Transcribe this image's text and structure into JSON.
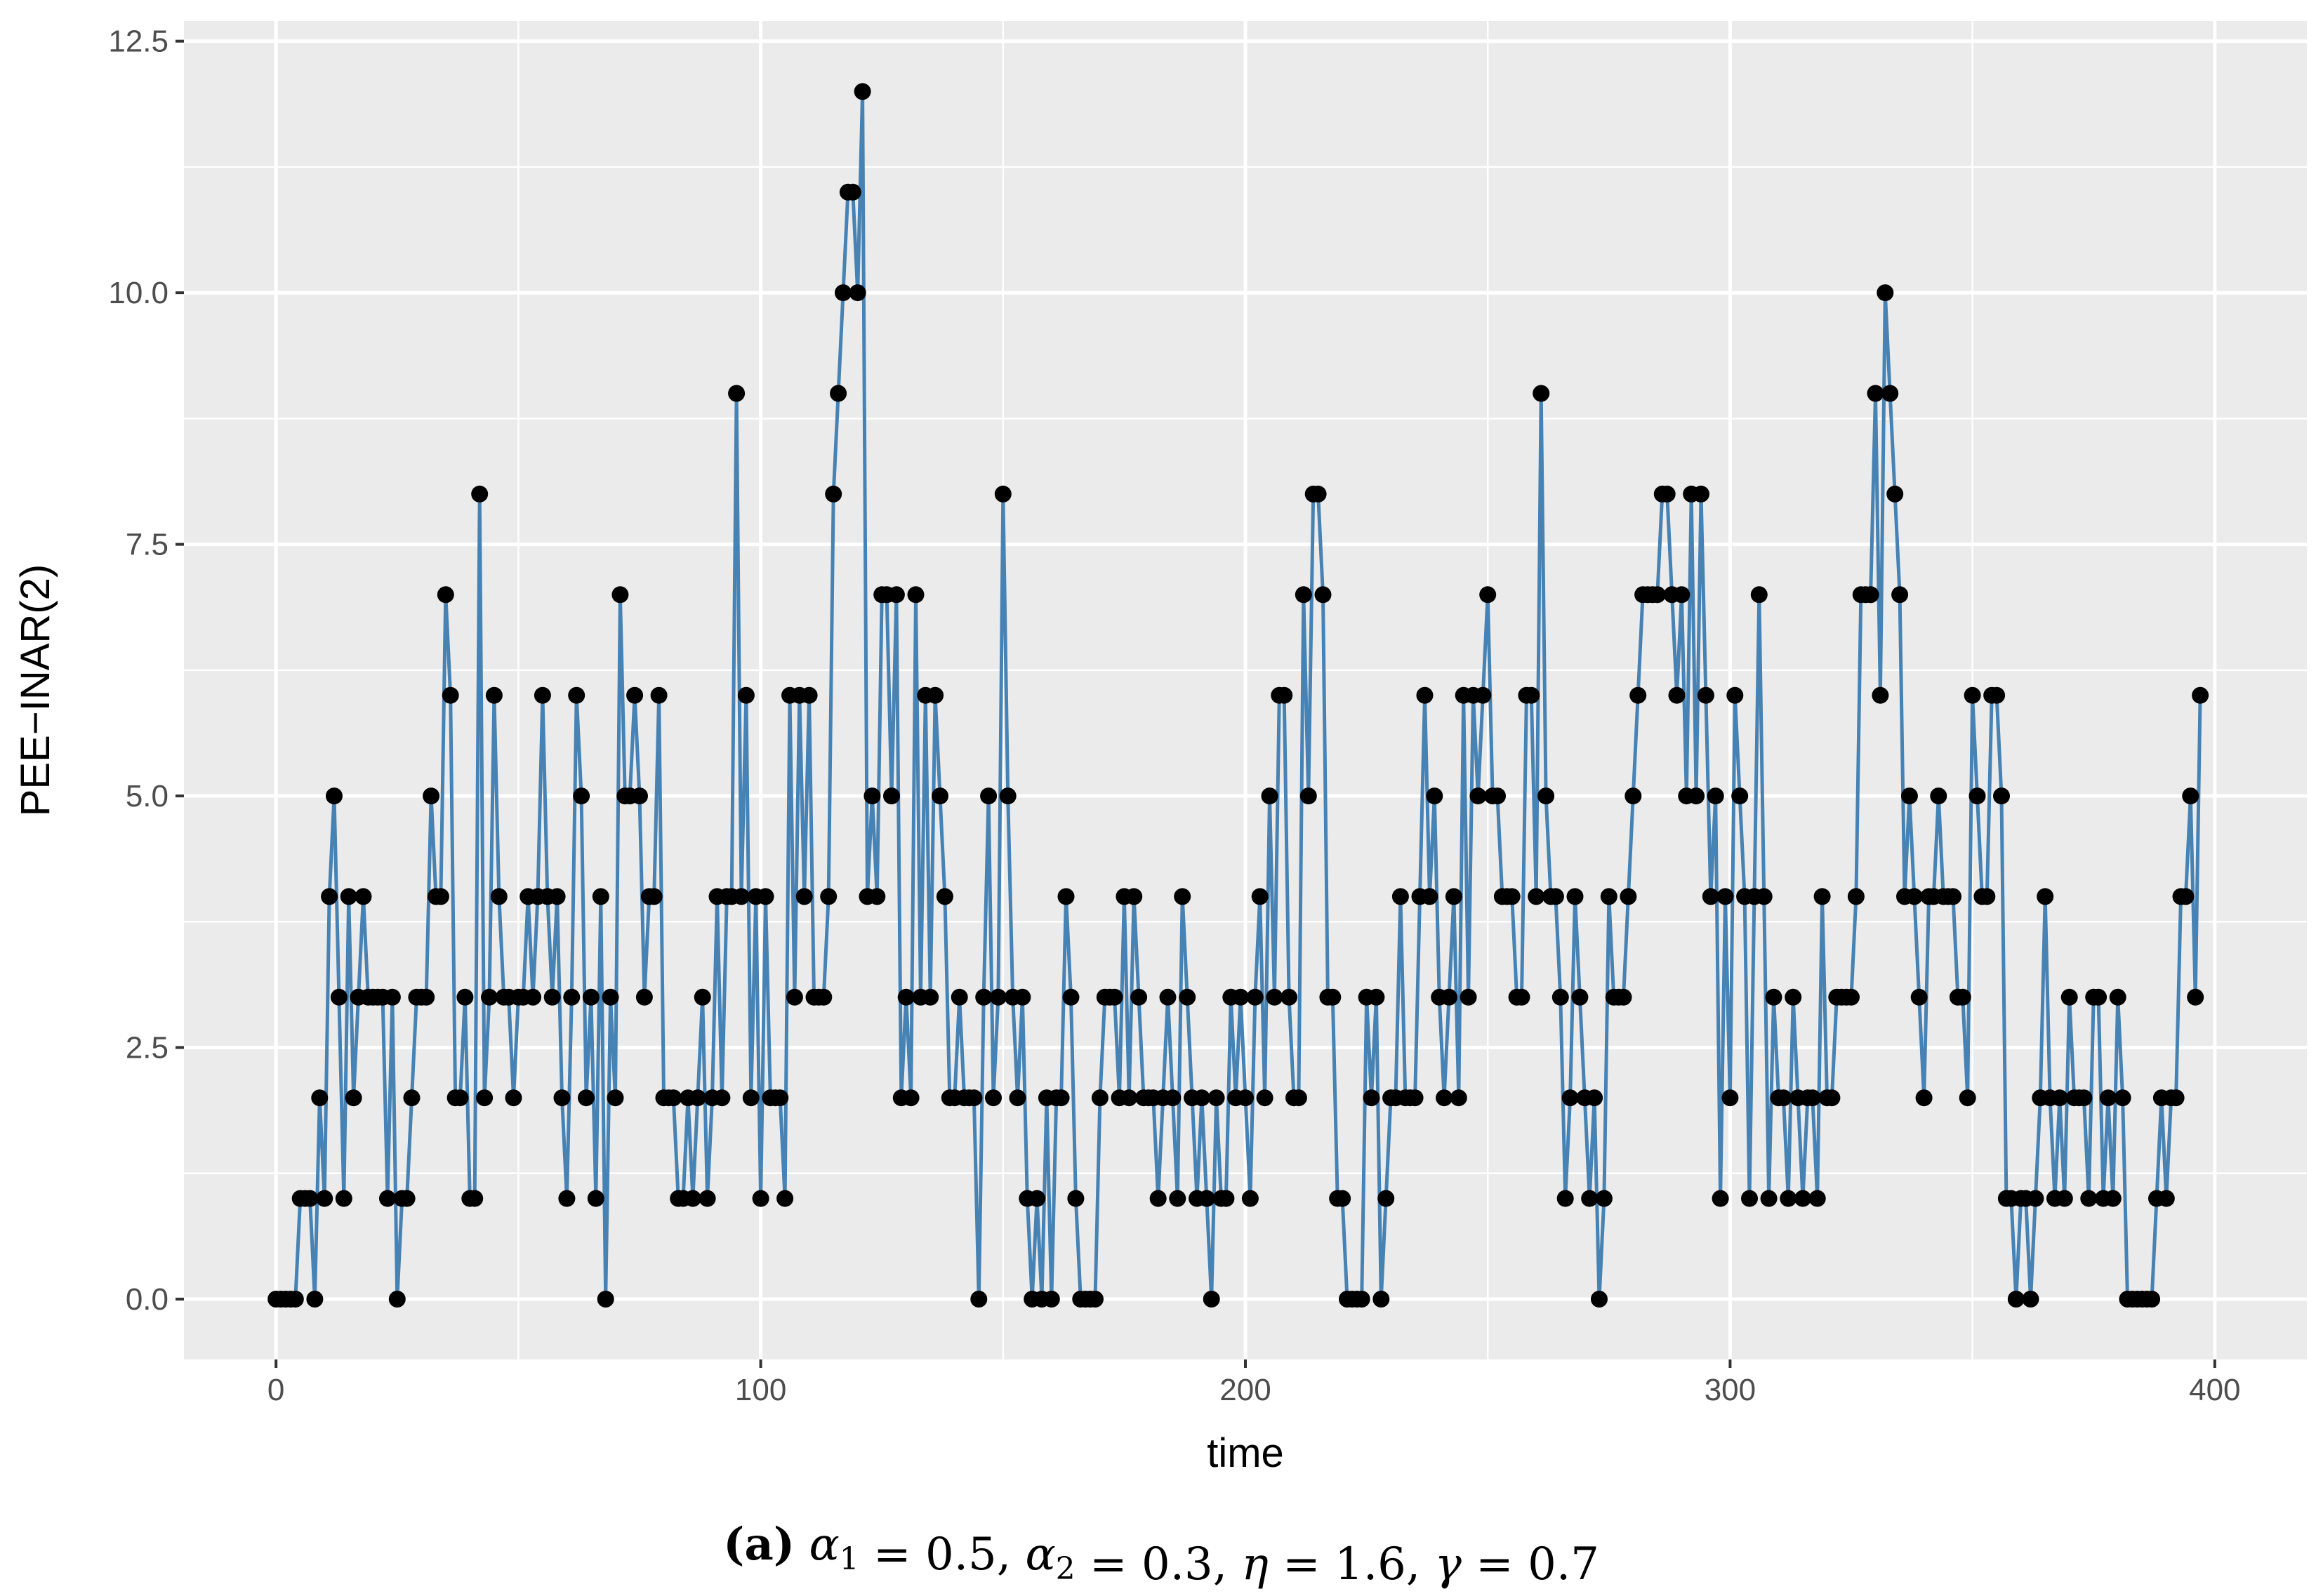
{
  "chart_data": {
    "type": "line",
    "xlabel": "time",
    "ylabel": "PEE−INAR(2)",
    "xlim": [
      -19,
      419
    ],
    "ylim": [
      -0.6,
      12.7
    ],
    "x_ticks": [
      0,
      100,
      200,
      300,
      400
    ],
    "x_tick_labels": [
      "0",
      "100",
      "200",
      "300",
      "400"
    ],
    "y_ticks": [
      0,
      2.5,
      5,
      7.5,
      10,
      12.5
    ],
    "y_tick_labels": [
      "0.0",
      "2.5",
      "5.0",
      "7.5",
      "10.0",
      "12.5"
    ],
    "grid": true,
    "line_color": "#4682b4",
    "point_color": "#000000",
    "panel_color": "#ebebeb",
    "x_start": 0,
    "series": [
      {
        "values": [
          0,
          0,
          0,
          0,
          0,
          1,
          1,
          1,
          0,
          2,
          1,
          4,
          5,
          3,
          1,
          4,
          2,
          3,
          4,
          3,
          3,
          3,
          3,
          1,
          3,
          0,
          1,
          1,
          2,
          3,
          3,
          3,
          5,
          4,
          4,
          7,
          6,
          2,
          2,
          3,
          1,
          1,
          8,
          2,
          3,
          6,
          4,
          3,
          3,
          2,
          3,
          3,
          4,
          3,
          4,
          6,
          4,
          3,
          4,
          2,
          1,
          3,
          6,
          5,
          2,
          3,
          1,
          4,
          0,
          3,
          2,
          7,
          5,
          5,
          6,
          5,
          3,
          4,
          4,
          6,
          2,
          2,
          2,
          1,
          1,
          2,
          1,
          2,
          3,
          1,
          2,
          4,
          2,
          4,
          4,
          9,
          4,
          6,
          2,
          4,
          1,
          4,
          2,
          2,
          2,
          1,
          6,
          3,
          6,
          4,
          6,
          3,
          3,
          3,
          4,
          8,
          9,
          10,
          11,
          11,
          10,
          12,
          4,
          5,
          4,
          7,
          7,
          5,
          7,
          2,
          3,
          2,
          7,
          3,
          6,
          3,
          6,
          5,
          4,
          2,
          2,
          3,
          2,
          2,
          2,
          0,
          3,
          5,
          2,
          3,
          8,
          5,
          3,
          2,
          3,
          1,
          0,
          1,
          0,
          2,
          0,
          2,
          2,
          4,
          3,
          1,
          0,
          0,
          0,
          0,
          2,
          3,
          3,
          3,
          2,
          4,
          2,
          4,
          3,
          2,
          2,
          2,
          1,
          2,
          3,
          2,
          1,
          4,
          3,
          2,
          1,
          2,
          1,
          0,
          2,
          1,
          1,
          3,
          2,
          3,
          2,
          1,
          3,
          4,
          2,
          5,
          3,
          6,
          6,
          3,
          2,
          2,
          7,
          5,
          8,
          8,
          7,
          3,
          3,
          1,
          1,
          0,
          0,
          0,
          0,
          3,
          2,
          3,
          0,
          1,
          2,
          2,
          4,
          2,
          2,
          2,
          4,
          6,
          4,
          5,
          3,
          2,
          3,
          4,
          2,
          6,
          3,
          6,
          5,
          6,
          7,
          5,
          5,
          4,
          4,
          4,
          3,
          3,
          6,
          6,
          4,
          9,
          5,
          4,
          4,
          3,
          1,
          2,
          4,
          3,
          2,
          1,
          2,
          0,
          1,
          4,
          3,
          3,
          3,
          4,
          5,
          6,
          7,
          7,
          7,
          7,
          8,
          8,
          7,
          6,
          7,
          5,
          8,
          5,
          8,
          6,
          4,
          5,
          1,
          4,
          2,
          6,
          5,
          4,
          1,
          4,
          7,
          4,
          1,
          3,
          2,
          2,
          1,
          3,
          2,
          1,
          2,
          2,
          1,
          4,
          2,
          2,
          3,
          3,
          3,
          3,
          4,
          7,
          7,
          7,
          9,
          6,
          10,
          9,
          8,
          7,
          4,
          5,
          4,
          3,
          2,
          4,
          4,
          5,
          4,
          4,
          4,
          3,
          3,
          2,
          6,
          5,
          4,
          4,
          6,
          6,
          5,
          1,
          1,
          0,
          1,
          1,
          0,
          1,
          2,
          4,
          2,
          1,
          2,
          1,
          3,
          2,
          2,
          2,
          1,
          3,
          3,
          1,
          2,
          1,
          3,
          2,
          0,
          0,
          0,
          0,
          0,
          0,
          1,
          2,
          1,
          2,
          2,
          4,
          4,
          5,
          3,
          6
        ]
      }
    ],
    "caption": {
      "label": "(a)",
      "parts": [
        {
          "t": "α",
          "i": true
        },
        {
          "t": "1",
          "sub": true
        },
        {
          "t": " = 0.5, "
        },
        {
          "t": "α",
          "i": true
        },
        {
          "t": "2",
          "sub": true
        },
        {
          "t": " = 0.3, "
        },
        {
          "t": "η",
          "i": true
        },
        {
          "t": " = 1.6, "
        },
        {
          "t": "γ",
          "i": true
        },
        {
          "t": " = 0.7"
        }
      ]
    }
  }
}
